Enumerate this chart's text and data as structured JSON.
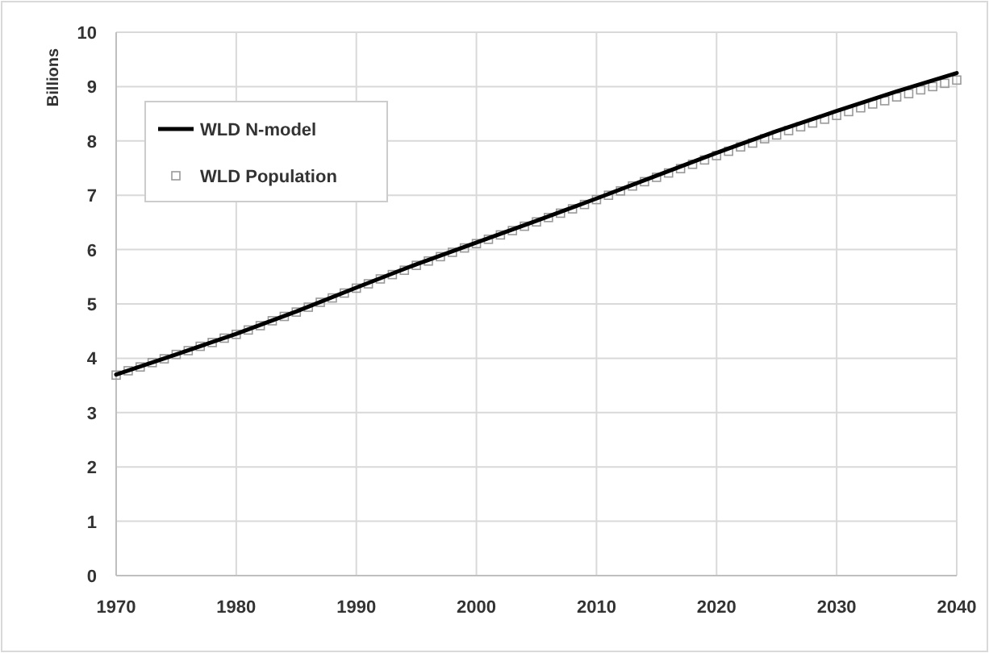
{
  "chart_data": {
    "type": "line",
    "ylabel": "Billions",
    "xlim": [
      1970,
      2040
    ],
    "xticks": [
      1970,
      1980,
      1990,
      2000,
      2010,
      2020,
      2030,
      2040
    ],
    "ylim": [
      0,
      10
    ],
    "yticks": [
      0,
      1,
      2,
      3,
      4,
      5,
      6,
      7,
      8,
      9,
      10
    ],
    "grid": true,
    "legend": "top left",
    "series": [
      {
        "name": "WLD N-model",
        "color": "#000000",
        "marker": "none",
        "line_style": "solid",
        "x": [
          1970,
          1975,
          1980,
          1985,
          1990,
          1995,
          2000,
          2005,
          2010,
          2015,
          2020,
          2025,
          2030,
          2035,
          2040
        ],
        "values": [
          3.7,
          4.07,
          4.45,
          4.86,
          5.3,
          5.73,
          6.13,
          6.53,
          6.94,
          7.36,
          7.78,
          8.18,
          8.55,
          8.91,
          9.25
        ]
      },
      {
        "name": "WLD Population",
        "type": "scatter",
        "color": "#999999",
        "marker": "square",
        "x": [
          1970,
          1971,
          1972,
          1973,
          1974,
          1975,
          1976,
          1977,
          1978,
          1979,
          1980,
          1981,
          1982,
          1983,
          1984,
          1985,
          1986,
          1987,
          1988,
          1989,
          1990,
          1991,
          1992,
          1993,
          1994,
          1995,
          1996,
          1997,
          1998,
          1999,
          2000,
          2001,
          2002,
          2003,
          2004,
          2005,
          2006,
          2007,
          2008,
          2009,
          2010,
          2011,
          2012,
          2013,
          2014,
          2015,
          2016,
          2017,
          2018,
          2019,
          2020,
          2021,
          2022,
          2023,
          2024,
          2025,
          2026,
          2027,
          2028,
          2029,
          2030,
          2031,
          2032,
          2033,
          2034,
          2035,
          2036,
          2037,
          2038,
          2039,
          2040
        ],
        "values": [
          3.69,
          3.77,
          3.84,
          3.92,
          3.99,
          4.07,
          4.14,
          4.22,
          4.29,
          4.37,
          4.44,
          4.52,
          4.6,
          4.69,
          4.77,
          4.85,
          4.94,
          5.03,
          5.11,
          5.2,
          5.29,
          5.37,
          5.46,
          5.54,
          5.62,
          5.71,
          5.79,
          5.87,
          5.95,
          6.03,
          6.11,
          6.19,
          6.27,
          6.35,
          6.43,
          6.51,
          6.59,
          6.67,
          6.75,
          6.83,
          6.92,
          7.0,
          7.08,
          7.17,
          7.25,
          7.33,
          7.41,
          7.49,
          7.57,
          7.65,
          7.73,
          7.81,
          7.89,
          7.96,
          8.04,
          8.11,
          8.19,
          8.26,
          8.33,
          8.4,
          8.47,
          8.54,
          8.61,
          8.68,
          8.74,
          8.81,
          8.87,
          8.94,
          9.0,
          9.06,
          9.12
        ]
      }
    ]
  }
}
